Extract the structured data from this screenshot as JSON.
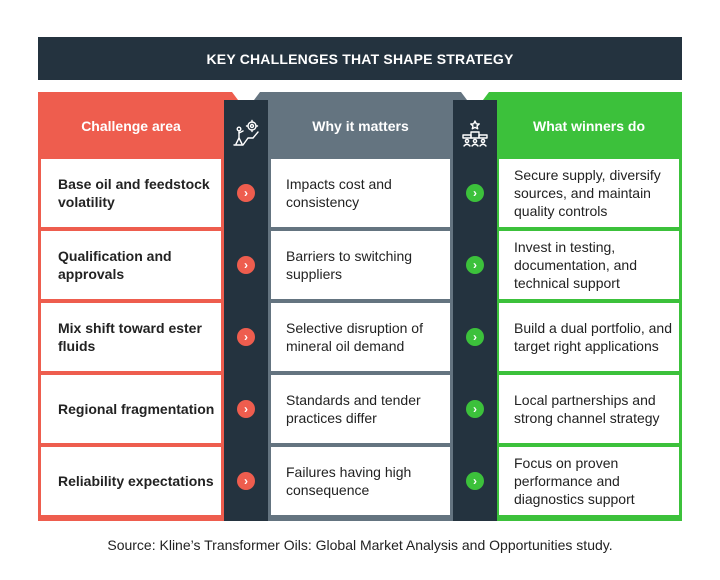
{
  "title": "KEY CHALLENGES THAT SHAPE STRATEGY",
  "columns": {
    "challenge": "Challenge area",
    "why": "Why it matters",
    "winners": "What winners do"
  },
  "rows": [
    {
      "challenge": "Base oil and feedstock volatility",
      "why": "Impacts cost and consistency",
      "winners": "Secure supply, diversify sources, and maintain quality controls"
    },
    {
      "challenge": "Qualification and approvals",
      "why": "Barriers to switching suppliers",
      "winners": "Invest in testing, documentation, and technical support"
    },
    {
      "challenge": "Mix shift toward ester fluids",
      "why": "Selective disruption of mineral oil demand",
      "winners": "Build a dual portfolio, and target right applications"
    },
    {
      "challenge": "Regional fragmentation",
      "why": "Standards and tender practices differ",
      "winners": "Local partnerships and strong channel strategy"
    },
    {
      "challenge": "Reliability expectations",
      "why": "Failures having high consequence",
      "winners": "Focus on proven performance and diagnostics support"
    }
  ],
  "chevron_glyph": "›",
  "colors": {
    "dark": "#24333f",
    "red": "#ee5d4e",
    "grey": "#647480",
    "green": "#3cc13b"
  },
  "icons": {
    "strip_a": "climber-gear-icon",
    "strip_b": "podium-award-icon"
  },
  "source": "Source: Kline’s Transformer Oils: Global Market Analysis and Opportunities study."
}
